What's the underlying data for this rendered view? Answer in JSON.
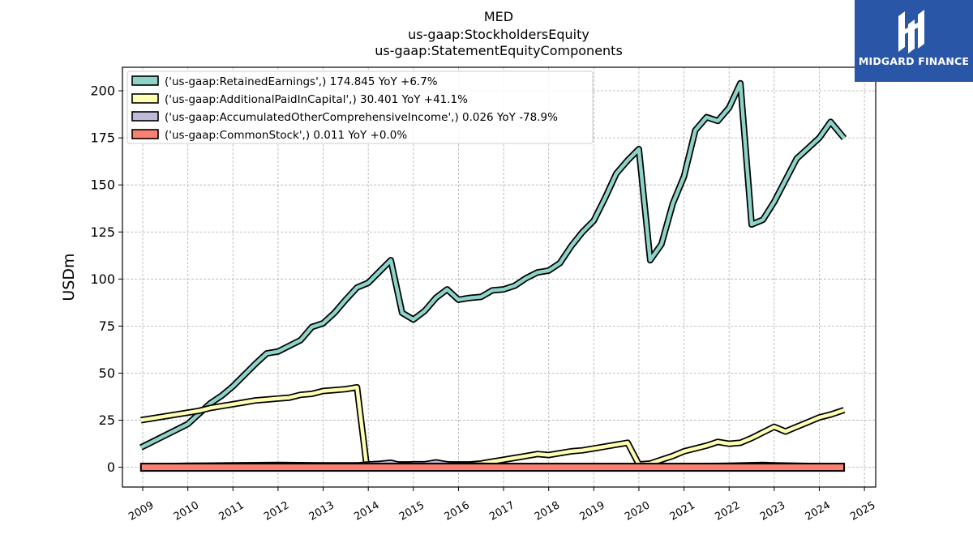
{
  "logo": {
    "text": "MIDGARD FINANCE",
    "bg_color": "#2a56a8"
  },
  "chart_data": {
    "type": "line",
    "title_lines": [
      "MED",
      "us-gaap:StockholdersEquity",
      "us-gaap:StatementEquityComponents"
    ],
    "ylabel": "USDm",
    "xlabel": "",
    "xlim": [
      2008.55,
      2025.25
    ],
    "ylim": [
      -10.5,
      212.5
    ],
    "yticks": [
      0,
      25,
      50,
      75,
      100,
      125,
      150,
      175,
      200
    ],
    "xticks": [
      2009,
      2010,
      2011,
      2012,
      2013,
      2014,
      2015,
      2016,
      2017,
      2018,
      2019,
      2020,
      2021,
      2022,
      2023,
      2024,
      2025
    ],
    "grid": true,
    "legend_position": "top-left",
    "series": [
      {
        "name": "('us-gaap:RetainedEarnings',) 174.845 YoY +6.7%",
        "color": "#8dd3c7",
        "points": [
          [
            2008.96,
            10.5
          ],
          [
            2010.0,
            23.0
          ],
          [
            2010.25,
            28.5
          ],
          [
            2010.5,
            34.0
          ],
          [
            2010.75,
            38.0
          ],
          [
            2011.0,
            43.0
          ],
          [
            2011.25,
            49.0
          ],
          [
            2011.5,
            55.0
          ],
          [
            2011.75,
            60.5
          ],
          [
            2012.0,
            61.5
          ],
          [
            2012.25,
            64.5
          ],
          [
            2012.5,
            67.5
          ],
          [
            2012.75,
            74.5
          ],
          [
            2013.0,
            76.5
          ],
          [
            2013.25,
            82.0
          ],
          [
            2013.5,
            89.0
          ],
          [
            2013.75,
            95.5
          ],
          [
            2014.0,
            98.0
          ],
          [
            2014.25,
            104.0
          ],
          [
            2014.5,
            110.0
          ],
          [
            2014.75,
            82.0
          ],
          [
            2015.0,
            78.5
          ],
          [
            2015.25,
            83.0
          ],
          [
            2015.5,
            90.0
          ],
          [
            2015.75,
            94.5
          ],
          [
            2016.0,
            89.0
          ],
          [
            2016.25,
            90.0
          ],
          [
            2016.5,
            90.5
          ],
          [
            2016.75,
            94.0
          ],
          [
            2017.0,
            94.5
          ],
          [
            2017.25,
            96.5
          ],
          [
            2017.5,
            100.5
          ],
          [
            2017.75,
            103.5
          ],
          [
            2018.0,
            104.5
          ],
          [
            2018.25,
            108.5
          ],
          [
            2018.5,
            117.5
          ],
          [
            2018.75,
            125.0
          ],
          [
            2019.0,
            131.0
          ],
          [
            2019.25,
            143.0
          ],
          [
            2019.5,
            156.0
          ],
          [
            2019.75,
            163.0
          ],
          [
            2020.0,
            169.0
          ],
          [
            2020.25,
            110.0
          ],
          [
            2020.5,
            118.5
          ],
          [
            2020.75,
            140.0
          ],
          [
            2021.0,
            154.5
          ],
          [
            2021.25,
            179.0
          ],
          [
            2021.5,
            186.0
          ],
          [
            2021.75,
            184.0
          ],
          [
            2022.0,
            191.0
          ],
          [
            2022.25,
            204.0
          ],
          [
            2022.5,
            129.0
          ],
          [
            2022.75,
            131.5
          ],
          [
            2023.0,
            141.0
          ],
          [
            2023.25,
            152.5
          ],
          [
            2023.5,
            164.0
          ],
          [
            2023.75,
            169.5
          ],
          [
            2024.0,
            175.0
          ],
          [
            2024.25,
            183.5
          ],
          [
            2024.55,
            174.845
          ]
        ]
      },
      {
        "name": "('us-gaap:AdditionalPaidInCapital',) 30.401 YoY +41.1%",
        "color": "#ffffb3",
        "points": [
          [
            2008.96,
            25.0
          ],
          [
            2010.0,
            29.0
          ],
          [
            2010.25,
            30.0
          ],
          [
            2010.5,
            31.5
          ],
          [
            2010.75,
            32.5
          ],
          [
            2011.0,
            33.5
          ],
          [
            2011.25,
            34.5
          ],
          [
            2011.5,
            35.5
          ],
          [
            2011.75,
            36.0
          ],
          [
            2012.0,
            36.5
          ],
          [
            2012.25,
            37.0
          ],
          [
            2012.5,
            38.5
          ],
          [
            2012.75,
            39.0
          ],
          [
            2013.0,
            40.5
          ],
          [
            2013.25,
            41.0
          ],
          [
            2013.5,
            41.5
          ],
          [
            2013.75,
            42.5
          ],
          [
            2013.96,
            1.5
          ],
          [
            2014.25,
            1.5
          ],
          [
            2014.5,
            1.5
          ],
          [
            2014.75,
            1.5
          ],
          [
            2015.0,
            1.5
          ],
          [
            2015.25,
            1.5
          ],
          [
            2015.5,
            1.5
          ],
          [
            2015.75,
            1.5
          ],
          [
            2016.0,
            1.5
          ],
          [
            2016.25,
            1.5
          ],
          [
            2016.5,
            2.0
          ],
          [
            2016.75,
            3.0
          ],
          [
            2017.0,
            4.0
          ],
          [
            2017.25,
            5.0
          ],
          [
            2017.5,
            6.0
          ],
          [
            2017.75,
            7.0
          ],
          [
            2018.0,
            6.5
          ],
          [
            2018.25,
            7.5
          ],
          [
            2018.5,
            8.5
          ],
          [
            2018.75,
            9.0
          ],
          [
            2019.0,
            10.0
          ],
          [
            2019.25,
            11.0
          ],
          [
            2019.5,
            12.0
          ],
          [
            2019.75,
            13.0
          ],
          [
            2020.0,
            1.5
          ],
          [
            2020.25,
            2.0
          ],
          [
            2020.5,
            4.0
          ],
          [
            2020.75,
            6.0
          ],
          [
            2021.0,
            8.5
          ],
          [
            2021.25,
            10.0
          ],
          [
            2021.5,
            11.5
          ],
          [
            2021.75,
            13.5
          ],
          [
            2022.0,
            12.5
          ],
          [
            2022.25,
            13.0
          ],
          [
            2022.5,
            15.5
          ],
          [
            2022.75,
            18.5
          ],
          [
            2023.0,
            21.5
          ],
          [
            2023.25,
            19.0
          ],
          [
            2023.5,
            21.5
          ],
          [
            2023.75,
            24.0
          ],
          [
            2024.0,
            26.5
          ],
          [
            2024.25,
            28.0
          ],
          [
            2024.55,
            30.401
          ]
        ]
      },
      {
        "name": "('us-gaap:AccumulatedOtherComprehensiveIncome',) 0.026 YoY -78.9%",
        "color": "#bebada",
        "points": [
          [
            2008.96,
            0.3
          ],
          [
            2010.0,
            0.8
          ],
          [
            2011.0,
            1.0
          ],
          [
            2012.0,
            1.2
          ],
          [
            2013.0,
            1.0
          ],
          [
            2013.75,
            1.0
          ],
          [
            2014.0,
            1.5
          ],
          [
            2014.25,
            1.8
          ],
          [
            2014.5,
            2.4
          ],
          [
            2014.75,
            1.0
          ],
          [
            2015.0,
            1.6
          ],
          [
            2015.25,
            1.6
          ],
          [
            2015.5,
            2.6
          ],
          [
            2015.75,
            1.6
          ],
          [
            2016.0,
            1.0
          ],
          [
            2016.5,
            0.8
          ],
          [
            2017.0,
            0.5
          ],
          [
            2018.0,
            0.3
          ],
          [
            2019.0,
            0.2
          ],
          [
            2020.0,
            0.3
          ],
          [
            2021.0,
            0.5
          ],
          [
            2022.0,
            0.8
          ],
          [
            2022.75,
            1.2
          ],
          [
            2023.0,
            1.0
          ],
          [
            2024.0,
            0.6
          ],
          [
            2024.55,
            0.026
          ]
        ]
      },
      {
        "name": "('us-gaap:CommonStock',) 0.011 YoY +0.0%",
        "color": "#fb8072",
        "points": [
          [
            2008.96,
            0.011
          ],
          [
            2010.0,
            0.011
          ],
          [
            2012.0,
            0.011
          ],
          [
            2014.0,
            0.011
          ],
          [
            2016.0,
            0.011
          ],
          [
            2018.0,
            0.011
          ],
          [
            2020.0,
            0.011
          ],
          [
            2022.0,
            0.011
          ],
          [
            2024.0,
            0.011
          ],
          [
            2024.55,
            0.011
          ]
        ]
      }
    ]
  }
}
